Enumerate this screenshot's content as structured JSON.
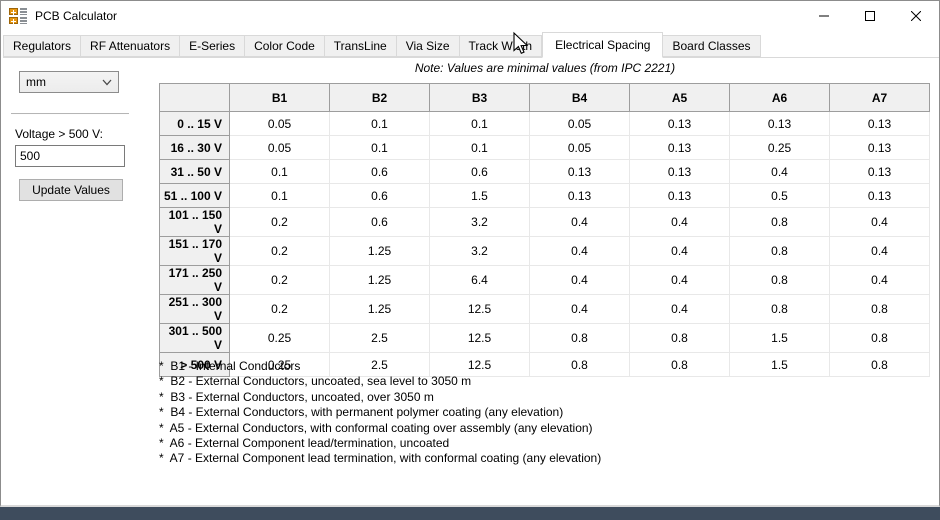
{
  "window": {
    "title": "PCB Calculator",
    "controls": {
      "minimize": "minimize",
      "maximize": "maximize",
      "close": "close"
    }
  },
  "tabs": [
    {
      "label": "Regulators",
      "selected": false
    },
    {
      "label": "RF Attenuators",
      "selected": false
    },
    {
      "label": "E-Series",
      "selected": false
    },
    {
      "label": "Color Code",
      "selected": false
    },
    {
      "label": "TransLine",
      "selected": false
    },
    {
      "label": "Via Size",
      "selected": false
    },
    {
      "label": "Track Width",
      "selected": false
    },
    {
      "label": "Electrical Spacing",
      "selected": true
    },
    {
      "label": "Board Classes",
      "selected": false
    }
  ],
  "note": "Note: Values are minimal values (from IPC 2221)",
  "left_panel": {
    "units_value": "mm",
    "voltage_label": "Voltage > 500 V:",
    "voltage_value": "500",
    "update_button": "Update Values"
  },
  "table": {
    "col_headers": [
      "B1",
      "B2",
      "B3",
      "B4",
      "A5",
      "A6",
      "A7"
    ],
    "rows": [
      {
        "range": "0 .. 15 V",
        "values": [
          "0.05",
          "0.1",
          "0.1",
          "0.05",
          "0.13",
          "0.13",
          "0.13"
        ]
      },
      {
        "range": "16 .. 30 V",
        "values": [
          "0.05",
          "0.1",
          "0.1",
          "0.05",
          "0.13",
          "0.25",
          "0.13"
        ]
      },
      {
        "range": "31 .. 50 V",
        "values": [
          "0.1",
          "0.6",
          "0.6",
          "0.13",
          "0.13",
          "0.4",
          "0.13"
        ]
      },
      {
        "range": "51 .. 100 V",
        "values": [
          "0.1",
          "0.6",
          "1.5",
          "0.13",
          "0.13",
          "0.5",
          "0.13"
        ]
      },
      {
        "range": "101 .. 150 V",
        "values": [
          "0.2",
          "0.6",
          "3.2",
          "0.4",
          "0.4",
          "0.8",
          "0.4"
        ]
      },
      {
        "range": "151 .. 170 V",
        "values": [
          "0.2",
          "1.25",
          "3.2",
          "0.4",
          "0.4",
          "0.8",
          "0.4"
        ]
      },
      {
        "range": "171 .. 250 V",
        "values": [
          "0.2",
          "1.25",
          "6.4",
          "0.4",
          "0.4",
          "0.8",
          "0.4"
        ]
      },
      {
        "range": "251 .. 300 V",
        "values": [
          "0.2",
          "1.25",
          "12.5",
          "0.4",
          "0.4",
          "0.8",
          "0.8"
        ]
      },
      {
        "range": "301 .. 500 V",
        "values": [
          "0.25",
          "2.5",
          "12.5",
          "0.8",
          "0.8",
          "1.5",
          "0.8"
        ]
      },
      {
        "range": "> 500 V",
        "values": [
          "0.25",
          "2.5",
          "12.5",
          "0.8",
          "0.8",
          "1.5",
          "0.8"
        ]
      }
    ]
  },
  "footnotes": [
    "*  B1 - Internal Conductors",
    "*  B2 - External Conductors, uncoated, sea level to 3050 m",
    "*  B3 - External Conductors, uncoated, over 3050 m",
    "*  B4 - External Conductors, with permanent polymer coating (any elevation)",
    "*  A5 - External Conductors, with conformal coating over assembly (any elevation)",
    "*  A6 - External Component lead/termination, uncoated",
    "*  A7 - External Component lead termination, with conformal coating (any elevation)"
  ],
  "colors": {
    "icon_orange": "#e8960f",
    "header_gray": "#f0f0f0",
    "bottom_strip": "#3e4c5d"
  }
}
